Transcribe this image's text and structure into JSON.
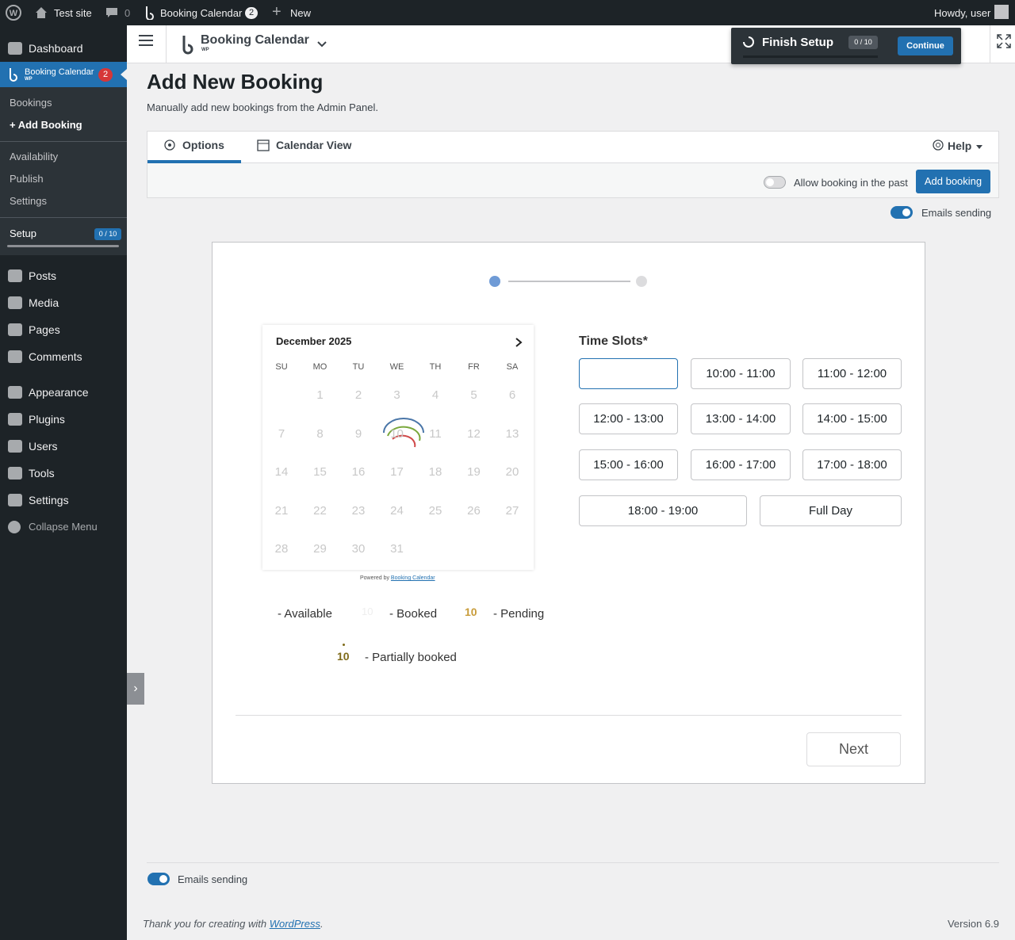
{
  "admin_bar": {
    "site": "Test site",
    "comments": "0",
    "plugin": "Booking Calendar",
    "plugin_count": "2",
    "new": "New",
    "howdy": "Howdy, user"
  },
  "sidebar": {
    "dashboard": "Dashboard",
    "plugin": "Booking Calendar",
    "plugin_sub": "WP",
    "plugin_count": "2",
    "submenu": [
      "Bookings",
      "+ Add Booking"
    ],
    "submenu2": [
      "Availability",
      "Publish",
      "Settings"
    ],
    "setup": "Setup",
    "setup_progress": "0 / 10",
    "menu": [
      "Posts",
      "Media",
      "Pages",
      "Comments",
      "Appearance",
      "Plugins",
      "Users",
      "Tools",
      "Settings"
    ],
    "collapse": "Collapse Menu"
  },
  "header": {
    "brand": "Booking Calendar",
    "brand_sub": "WP",
    "finish": "Finish Setup",
    "progress": "0 / 10",
    "continue": "Continue"
  },
  "page": {
    "title": "Add New Booking",
    "subtitle": "Manually add new bookings from the Admin Panel.",
    "tabs": [
      "Options",
      "Calendar View"
    ],
    "help": "Help",
    "allow_past": "Allow booking in the past",
    "add_booking": "Add booking",
    "emails": "Emails sending"
  },
  "calendar": {
    "month": "December 2025",
    "weekdays": [
      "SU",
      "MO",
      "TU",
      "WE",
      "TH",
      "FR",
      "SA"
    ],
    "weeks": [
      [
        null,
        1,
        2,
        3,
        4,
        5,
        6
      ],
      [
        7,
        8,
        9,
        10,
        11,
        12,
        13
      ],
      [
        14,
        15,
        16,
        17,
        18,
        19,
        20
      ],
      [
        21,
        22,
        23,
        24,
        25,
        26,
        27
      ],
      [
        28,
        29,
        30,
        31,
        null,
        null,
        null
      ]
    ],
    "powered": "Powered by",
    "powered_link": "Booking Calendar"
  },
  "legend": {
    "available": "- Available",
    "booked_sample": "10",
    "booked": "- Booked",
    "pending_sample": "10",
    "pending": "- Pending",
    "partial_sample": "10",
    "partial": "- Partially booked"
  },
  "time_slots": {
    "label": "Time Slots*",
    "slots": [
      "10:00 - 11:00",
      "11:00 - 12:00",
      "12:00 - 13:00",
      "13:00 - 14:00",
      "14:00 - 15:00",
      "15:00 - 16:00",
      "16:00 - 17:00",
      "17:00 - 18:00",
      "18:00 - 19:00",
      "Full Day"
    ]
  },
  "next": "Next",
  "footer": {
    "emails": "Emails sending",
    "thanks": "Thank you for creating with",
    "link": "WordPress",
    "thanks_end": ".",
    "version": "Version 6.9"
  }
}
